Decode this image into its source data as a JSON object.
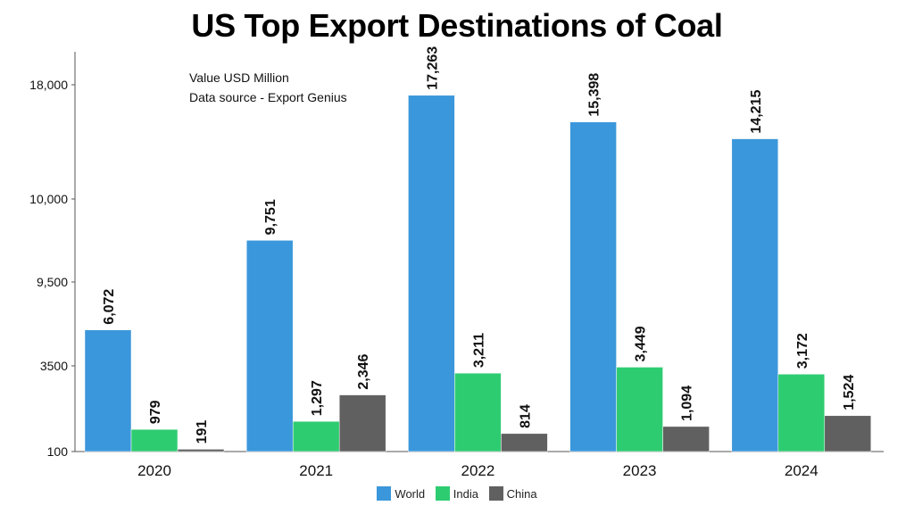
{
  "chart_data": {
    "type": "bar",
    "title": "US Top Export Destinations of Coal",
    "notes": [
      "Value USD Million",
      "Data source - Export Genius"
    ],
    "categories": [
      "2020",
      "2021",
      "2022",
      "2023",
      "2024"
    ],
    "y_tick_labels": [
      "100",
      "3500",
      "9,500",
      "10,000",
      "18,000"
    ],
    "ylim": [
      100,
      18000
    ],
    "grid": false,
    "legend_position": "bottom",
    "series": [
      {
        "name": "World",
        "color": "#3b97db",
        "values": [
          6072,
          9751,
          17263,
          15398,
          14215
        ],
        "labels": [
          "6,072",
          "9,751",
          "17,263",
          "15,398",
          "14,215"
        ]
      },
      {
        "name": "India",
        "color": "#2ecc71",
        "values": [
          979,
          1297,
          3211,
          3449,
          3172
        ],
        "labels": [
          "979",
          "1,297",
          "3,211",
          "3,449",
          "3,172"
        ]
      },
      {
        "name": "China",
        "color": "#606060",
        "values": [
          191,
          2346,
          814,
          1094,
          1524
        ],
        "labels": [
          "191",
          "2,346",
          "814",
          "1,094",
          "1,524"
        ]
      }
    ]
  }
}
